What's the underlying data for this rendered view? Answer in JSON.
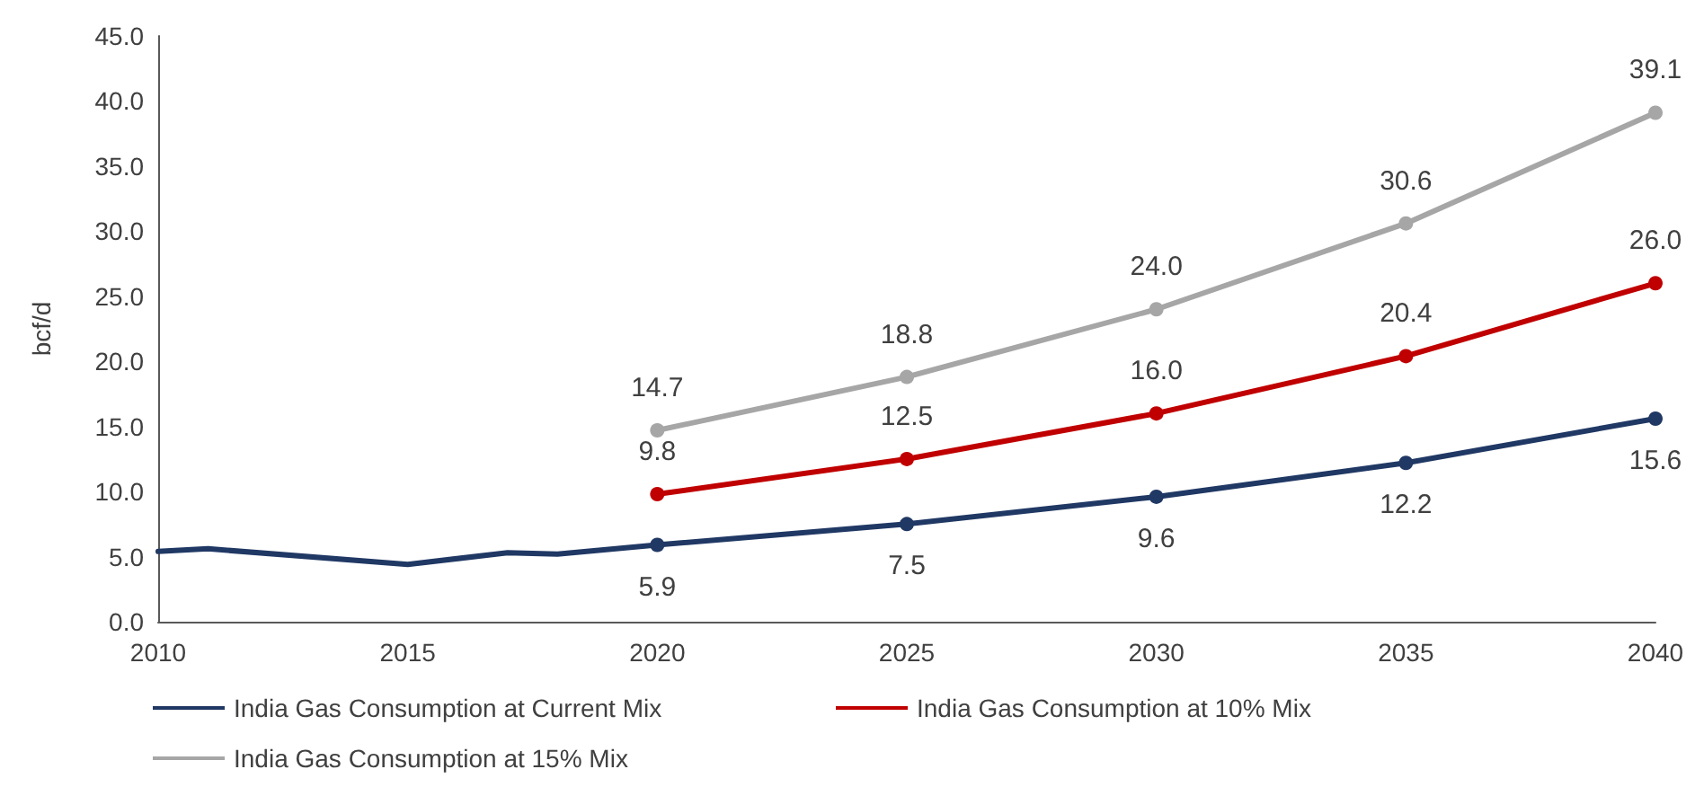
{
  "chart_data": {
    "type": "line",
    "ylabel": "bcf/d",
    "xlim": [
      2010,
      2040
    ],
    "xticks": [
      2010,
      2015,
      2020,
      2025,
      2030,
      2035,
      2040
    ],
    "ylim": [
      0,
      45
    ],
    "yticks": [
      {
        "value": 0,
        "label": "0.0"
      },
      {
        "value": 5,
        "label": "5.0"
      },
      {
        "value": 10,
        "label": "10.0"
      },
      {
        "value": 15,
        "label": "15.0"
      },
      {
        "value": 20,
        "label": "20.0"
      },
      {
        "value": 25,
        "label": "25.0"
      },
      {
        "value": 30,
        "label": "30.0"
      },
      {
        "value": 35,
        "label": "35.0"
      },
      {
        "value": 40,
        "label": "40.0"
      },
      {
        "value": 45,
        "label": "45.0"
      }
    ],
    "marker": "circle",
    "legend": "bottom",
    "series": [
      {
        "color": "#203864",
        "marker": "none",
        "x": [
          2010,
          2011,
          2015,
          2017,
          2018,
          2020
        ],
        "values": [
          5.4,
          5.6,
          4.4,
          5.3,
          5.2,
          5.9
        ],
        "value_labels": [
          null,
          null,
          null,
          null,
          null,
          null
        ]
      },
      {
        "name": "India Gas Consumption at Current Mix",
        "color": "#203864",
        "x": [
          2020,
          2025,
          2030,
          2035,
          2040
        ],
        "values": [
          5.9,
          7.5,
          9.6,
          12.2,
          15.6
        ],
        "value_labels": [
          "5.9",
          "7.5",
          "9.6",
          "12.2",
          "15.6"
        ]
      },
      {
        "name": "India Gas Consumption at 10% Mix",
        "color": "#c00000",
        "x": [
          2020,
          2025,
          2030,
          2035,
          2040
        ],
        "values": [
          9.8,
          12.5,
          16.0,
          20.4,
          26.0
        ],
        "value_labels": [
          "9.8",
          "12.5",
          "16.0",
          "20.4",
          "26.0"
        ]
      },
      {
        "name": "India Gas Consumption at 15% Mix",
        "color": "#a6a6a6",
        "x": [
          2020,
          2025,
          2030,
          2035,
          2040
        ],
        "values": [
          14.7,
          18.8,
          24.0,
          30.6,
          39.1
        ],
        "value_labels": [
          "14.7",
          "18.8",
          "24.0",
          "30.6",
          "39.1"
        ]
      }
    ]
  }
}
